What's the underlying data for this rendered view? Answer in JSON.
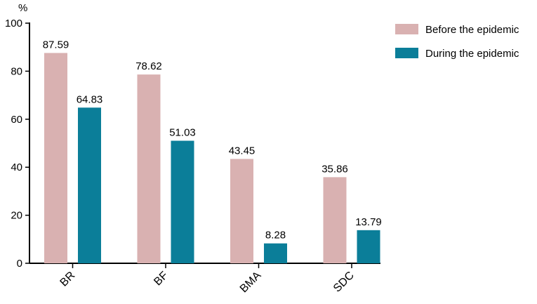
{
  "chart_data": {
    "type": "bar",
    "categories": [
      "BR",
      "BF",
      "BMA",
      "SDC"
    ],
    "series": [
      {
        "name": "Before the epidemic",
        "values": [
          87.59,
          78.62,
          43.45,
          35.86
        ],
        "color": "#d9b1b1"
      },
      {
        "name": "During the epidemic",
        "values": [
          64.83,
          51.03,
          8.28,
          13.79
        ],
        "color": "#0b7e99"
      }
    ],
    "data_labels": [
      [
        "87.59",
        "78.62",
        "43.45",
        "35.86"
      ],
      [
        "64.83",
        "51.03",
        "8.28",
        "13.79"
      ]
    ],
    "ylabel": "%",
    "ylim": [
      0,
      100
    ],
    "yticks": [
      0,
      20,
      40,
      60,
      80,
      100
    ],
    "grid": false,
    "legend_position": "top-right"
  }
}
